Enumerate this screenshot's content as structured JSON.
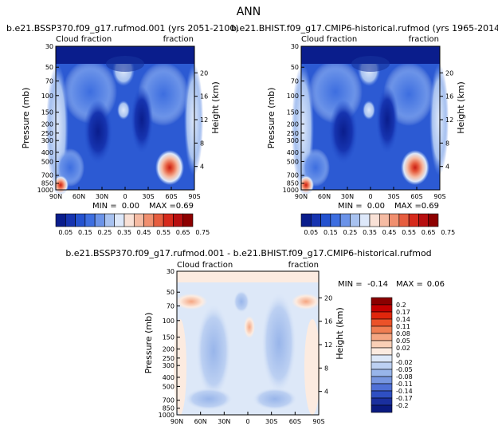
{
  "figure": {
    "title": "ANN",
    "diff_min_label": "MIN =",
    "diff_min": "-0.14",
    "diff_max_label": "MAX =",
    "diff_max": "0.06"
  },
  "chart_data": [
    {
      "type": "contour",
      "id": "left",
      "title": "b.e21.BSSP370.f09_g17.rufmod.001 (yrs 2051-2100)",
      "left_label": "Cloud fraction",
      "right_label": "fraction",
      "xlabel": "",
      "ylabel": "Pressure (mb)",
      "y2label": "Height (km)",
      "xticks": [
        "90N",
        "60N",
        "30N",
        "0",
        "30S",
        "60S",
        "90S"
      ],
      "yticks": [
        30,
        50,
        70,
        100,
        150,
        200,
        250,
        300,
        400,
        500,
        700,
        850,
        1000
      ],
      "y2ticks": [
        4,
        8,
        12,
        16,
        20
      ],
      "min_label": "MIN =",
      "min": "0.00",
      "max_label": "MAX =",
      "max": "0.69",
      "colorbar_labels": [
        "0.05",
        "0.15",
        "0.25",
        "0.35",
        "0.45",
        "0.55",
        "0.65",
        "0.75"
      ]
    },
    {
      "type": "contour",
      "id": "right",
      "title": "b.e21.BHIST.f09_g17.CMIP6-historical.rufmod (yrs 1965-2014)",
      "left_label": "Cloud fraction",
      "right_label": "fraction",
      "xlabel": "",
      "ylabel": "Pressure (mb)",
      "y2label": "Height (km)",
      "xticks": [
        "90N",
        "60N",
        "30N",
        "0",
        "30S",
        "60S",
        "90S"
      ],
      "yticks": [
        30,
        50,
        70,
        100,
        150,
        200,
        250,
        300,
        400,
        500,
        700,
        850,
        1000
      ],
      "y2ticks": [
        4,
        8,
        12,
        16,
        20
      ],
      "min_label": "MIN =",
      "min": "0.00",
      "max_label": "MAX =",
      "max": "0.69",
      "colorbar_labels": [
        "0.05",
        "0.15",
        "0.25",
        "0.35",
        "0.45",
        "0.55",
        "0.65",
        "0.75"
      ]
    },
    {
      "type": "contour",
      "id": "diff",
      "title": "b.e21.BSSP370.f09_g17.rufmod.001 - b.e21.BHIST.f09_g17.CMIP6-historical.rufmod",
      "left_label": "Cloud fraction",
      "right_label": "fraction",
      "xlabel": "",
      "ylabel": "Pressure (mb)",
      "y2label": "Height (km)",
      "xticks": [
        "90N",
        "60N",
        "30N",
        "0",
        "30S",
        "60S",
        "90S"
      ],
      "yticks": [
        30,
        50,
        70,
        100,
        150,
        200,
        250,
        300,
        400,
        500,
        700,
        850,
        1000
      ],
      "y2ticks": [
        4,
        8,
        12,
        16,
        20
      ],
      "colorbar_labels": [
        "0.2",
        "0.17",
        "0.14",
        "0.11",
        "0.08",
        "0.05",
        "0.02",
        "0",
        "-0.02",
        "-0.05",
        "-0.08",
        "-0.11",
        "-0.14",
        "-0.17",
        "-0.2"
      ]
    }
  ],
  "colors": {
    "abs_scale": [
      "#0a1d8c",
      "#1634b0",
      "#2452cf",
      "#3d6ee0",
      "#6b93e8",
      "#a8c2f0",
      "#dde8fa",
      "#f9e1d6",
      "#f5bba3",
      "#f08f6f",
      "#e65d3f",
      "#d62a1c",
      "#b70f10",
      "#8d0000"
    ],
    "diff_scale": [
      "#8b0000",
      "#c40000",
      "#e0260c",
      "#eb5228",
      "#f07e52",
      "#f5a682",
      "#f9cfb6",
      "#fcebe0",
      "#dde8f8",
      "#bcd0f2",
      "#98b5ea",
      "#7796e0",
      "#4f70d6",
      "#2f4fc2",
      "#1a2f9e",
      "#0a1a80"
    ]
  }
}
